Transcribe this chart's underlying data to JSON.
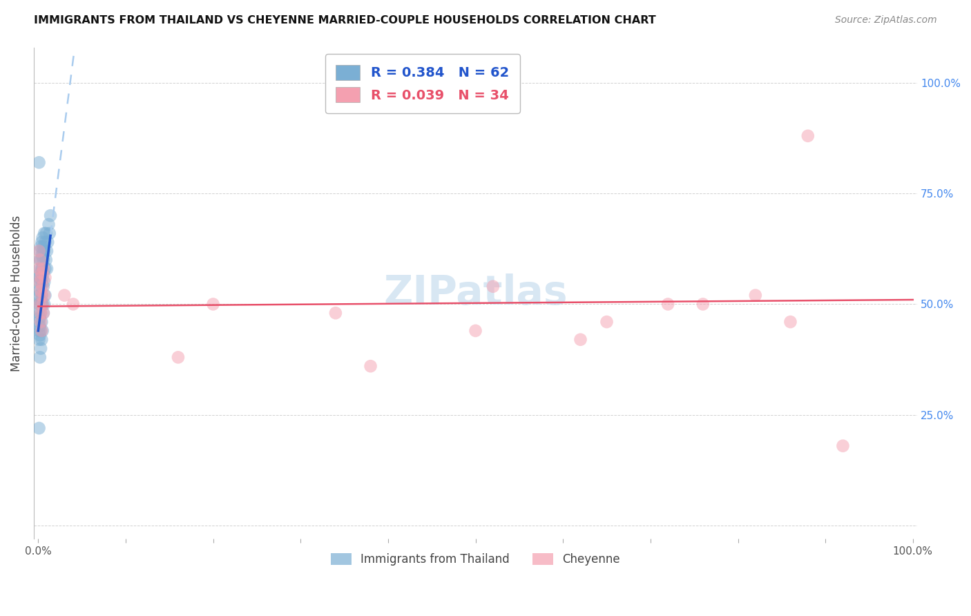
{
  "title": "IMMIGRANTS FROM THAILAND VS CHEYENNE MARRIED-COUPLE HOUSEHOLDS CORRELATION CHART",
  "source": "Source: ZipAtlas.com",
  "ylabel": "Married-couple Households",
  "legend_label1": "Immigrants from Thailand",
  "legend_label2": "Cheyenne",
  "r1": 0.384,
  "n1": 62,
  "r2": 0.039,
  "n2": 34,
  "color1": "#7BAFD4",
  "color2": "#F4A0B0",
  "line_color1": "#2255CC",
  "line_color2": "#E8506A",
  "dashed_line_color": "#AACCEE",
  "watermark": "ZIPatlas",
  "thailand_x": [
    0.001,
    0.001,
    0.001,
    0.001,
    0.001,
    0.001,
    0.001,
    0.001,
    0.002,
    0.002,
    0.002,
    0.002,
    0.002,
    0.002,
    0.002,
    0.002,
    0.002,
    0.003,
    0.003,
    0.003,
    0.003,
    0.003,
    0.003,
    0.003,
    0.003,
    0.003,
    0.004,
    0.004,
    0.004,
    0.004,
    0.004,
    0.004,
    0.004,
    0.004,
    0.005,
    0.005,
    0.005,
    0.005,
    0.005,
    0.005,
    0.006,
    0.006,
    0.006,
    0.006,
    0.006,
    0.007,
    0.007,
    0.007,
    0.007,
    0.008,
    0.008,
    0.008,
    0.009,
    0.009,
    0.01,
    0.01,
    0.011,
    0.012,
    0.013,
    0.014,
    0.001,
    0.001
  ],
  "thailand_y": [
    0.5,
    0.48,
    0.52,
    0.46,
    0.44,
    0.53,
    0.42,
    0.56,
    0.55,
    0.58,
    0.5,
    0.47,
    0.43,
    0.6,
    0.38,
    0.62,
    0.45,
    0.57,
    0.54,
    0.51,
    0.6,
    0.48,
    0.44,
    0.4,
    0.63,
    0.56,
    0.61,
    0.55,
    0.58,
    0.5,
    0.46,
    0.64,
    0.42,
    0.52,
    0.62,
    0.56,
    0.5,
    0.44,
    0.58,
    0.65,
    0.6,
    0.54,
    0.48,
    0.57,
    0.63,
    0.55,
    0.62,
    0.5,
    0.66,
    0.58,
    0.52,
    0.64,
    0.6,
    0.66,
    0.62,
    0.58,
    0.64,
    0.68,
    0.66,
    0.7,
    0.82,
    0.22
  ],
  "cheyenne_x": [
    0.001,
    0.001,
    0.002,
    0.002,
    0.002,
    0.003,
    0.003,
    0.003,
    0.003,
    0.004,
    0.004,
    0.004,
    0.005,
    0.005,
    0.006,
    0.006,
    0.007,
    0.008,
    0.03,
    0.04,
    0.16,
    0.2,
    0.34,
    0.38,
    0.5,
    0.52,
    0.62,
    0.65,
    0.72,
    0.76,
    0.82,
    0.86,
    0.88,
    0.92
  ],
  "cheyenne_y": [
    0.62,
    0.58,
    0.55,
    0.5,
    0.6,
    0.48,
    0.53,
    0.56,
    0.46,
    0.52,
    0.44,
    0.57,
    0.5,
    0.54,
    0.48,
    0.58,
    0.52,
    0.56,
    0.52,
    0.5,
    0.38,
    0.5,
    0.48,
    0.36,
    0.44,
    0.54,
    0.42,
    0.46,
    0.5,
    0.5,
    0.52,
    0.46,
    0.88,
    0.18
  ],
  "xlim": [
    0.0,
    1.0
  ],
  "ylim": [
    0.0,
    1.08
  ],
  "yticks": [
    0.0,
    0.25,
    0.5,
    0.75,
    1.0
  ],
  "ytick_labels_right": [
    "",
    "25.0%",
    "50.0%",
    "75.0%",
    "100.0%"
  ],
  "xticks": [
    0.0,
    0.1,
    0.2,
    0.3,
    0.4,
    0.5,
    0.6,
    0.7,
    0.8,
    0.9,
    1.0
  ]
}
